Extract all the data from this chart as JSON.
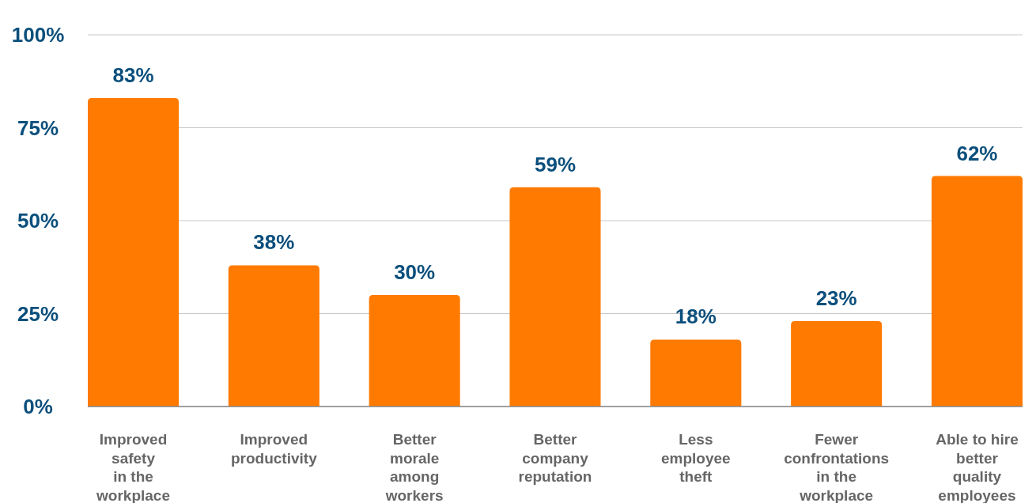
{
  "chart_data": {
    "type": "bar",
    "categories": [
      "Improved\nsafety\nin the\nworkplace",
      "Improved\nproductivity",
      "Better\nmorale\namong\nworkers",
      "Better\ncompany\nreputation",
      "Less\nemployee\ntheft",
      "Fewer\nconfrontations\nin the\nworkplace",
      "Able to hire\nbetter\nquality\nemployees"
    ],
    "values": [
      83,
      38,
      30,
      59,
      18,
      23,
      62
    ],
    "value_labels": [
      "83%",
      "38%",
      "30%",
      "59%",
      "18%",
      "23%",
      "62%"
    ],
    "color": "#ff7a00",
    "ylim": [
      0,
      100
    ],
    "yticks": [
      {
        "value": 0,
        "label": "0%"
      },
      {
        "value": 25,
        "label": "25%"
      },
      {
        "value": 50,
        "label": "50%"
      },
      {
        "value": 75,
        "label": "75%"
      },
      {
        "value": 100,
        "label": "100%"
      }
    ],
    "grid": "y"
  }
}
